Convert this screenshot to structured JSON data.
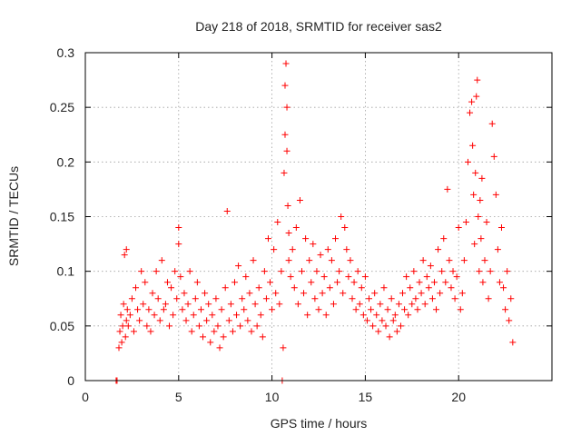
{
  "chart_data": {
    "type": "scatter",
    "title": "Day 218 of 2018, SRMTID for receiver sas2",
    "xlabel": "GPS time / hours",
    "ylabel": "SRMTID / TECUs",
    "xlim": [
      0,
      25
    ],
    "ylim": [
      0,
      0.3
    ],
    "xticks": [
      0,
      5,
      10,
      15,
      20
    ],
    "xtick_labels": [
      "0",
      "5",
      "10",
      "15",
      "20"
    ],
    "yticks": [
      0,
      0.05,
      0.1,
      0.15,
      0.2,
      0.25,
      0.3
    ],
    "ytick_labels": [
      "0",
      "0.05",
      "0.1",
      "0.15",
      "0.2",
      "0.25",
      "0.3"
    ],
    "grid": true,
    "marker": "+",
    "series": [
      {
        "name": "SRMTID",
        "color": "#ff0000",
        "x": [
          1.65,
          1.7,
          1.8,
          1.85,
          1.9,
          1.95,
          2.0,
          2.05,
          2.1,
          2.15,
          2.2,
          2.2,
          2.25,
          2.3,
          2.4,
          2.5,
          2.6,
          2.7,
          2.8,
          2.9,
          3.0,
          3.1,
          3.2,
          3.3,
          3.4,
          3.5,
          3.6,
          3.7,
          3.8,
          3.9,
          4.0,
          4.1,
          4.2,
          4.3,
          4.4,
          4.5,
          4.6,
          4.7,
          4.8,
          4.9,
          5.0,
          5.0,
          5.1,
          5.2,
          5.3,
          5.4,
          5.5,
          5.6,
          5.7,
          5.8,
          5.9,
          6.0,
          6.1,
          6.2,
          6.3,
          6.4,
          6.5,
          6.6,
          6.7,
          6.8,
          6.9,
          7.0,
          7.1,
          7.2,
          7.3,
          7.4,
          7.5,
          7.6,
          7.7,
          7.8,
          7.9,
          8.0,
          8.1,
          8.2,
          8.3,
          8.4,
          8.5,
          8.6,
          8.7,
          8.8,
          8.9,
          9.0,
          9.1,
          9.2,
          9.3,
          9.4,
          9.5,
          9.6,
          9.7,
          9.8,
          9.9,
          10.0,
          10.1,
          10.2,
          10.3,
          10.4,
          10.5,
          10.55,
          10.6,
          10.65,
          10.7,
          10.7,
          10.75,
          10.8,
          10.8,
          10.85,
          10.9,
          10.9,
          11.0,
          11.1,
          11.2,
          11.3,
          11.4,
          11.5,
          11.6,
          11.7,
          11.8,
          11.9,
          12.0,
          12.1,
          12.2,
          12.3,
          12.4,
          12.5,
          12.6,
          12.7,
          12.8,
          12.9,
          13.0,
          13.1,
          13.2,
          13.3,
          13.4,
          13.5,
          13.6,
          13.7,
          13.8,
          13.9,
          14.0,
          14.1,
          14.2,
          14.3,
          14.4,
          14.5,
          14.6,
          14.7,
          14.8,
          14.9,
          15.0,
          15.1,
          15.2,
          15.3,
          15.4,
          15.5,
          15.6,
          15.7,
          15.8,
          15.9,
          16.0,
          16.1,
          16.2,
          16.3,
          16.4,
          16.5,
          16.6,
          16.7,
          16.8,
          16.9,
          17.0,
          17.1,
          17.2,
          17.3,
          17.4,
          17.5,
          17.6,
          17.7,
          17.8,
          17.9,
          18.0,
          18.1,
          18.2,
          18.3,
          18.4,
          18.5,
          18.6,
          18.7,
          18.8,
          18.9,
          19.0,
          19.1,
          19.2,
          19.3,
          19.4,
          19.5,
          19.6,
          19.7,
          19.8,
          19.9,
          20.0,
          20.1,
          20.2,
          20.3,
          20.4,
          20.5,
          20.6,
          20.7,
          20.75,
          20.8,
          20.85,
          20.9,
          20.95,
          21.0,
          21.05,
          21.1,
          21.15,
          21.2,
          21.25,
          21.3,
          21.4,
          21.5,
          21.6,
          21.7,
          21.8,
          21.9,
          22.0,
          22.1,
          22.2,
          22.3,
          22.4,
          22.5,
          22.6,
          22.7,
          22.8,
          22.9
        ],
        "y": [
          0.0,
          0.0,
          0.03,
          0.045,
          0.06,
          0.035,
          0.05,
          0.07,
          0.115,
          0.04,
          0.055,
          0.12,
          0.065,
          0.05,
          0.06,
          0.075,
          0.045,
          0.085,
          0.065,
          0.055,
          0.1,
          0.07,
          0.09,
          0.05,
          0.065,
          0.045,
          0.08,
          0.06,
          0.1,
          0.075,
          0.055,
          0.11,
          0.065,
          0.07,
          0.09,
          0.05,
          0.085,
          0.06,
          0.1,
          0.075,
          0.125,
          0.14,
          0.095,
          0.065,
          0.08,
          0.055,
          0.07,
          0.1,
          0.045,
          0.06,
          0.075,
          0.09,
          0.05,
          0.065,
          0.04,
          0.08,
          0.055,
          0.07,
          0.035,
          0.06,
          0.045,
          0.075,
          0.05,
          0.03,
          0.065,
          0.04,
          0.085,
          0.155,
          0.055,
          0.07,
          0.045,
          0.09,
          0.06,
          0.105,
          0.05,
          0.075,
          0.065,
          0.095,
          0.055,
          0.08,
          0.045,
          0.11,
          0.07,
          0.05,
          0.085,
          0.06,
          0.04,
          0.1,
          0.075,
          0.13,
          0.09,
          0.065,
          0.12,
          0.08,
          0.145,
          0.07,
          0.1,
          0.0,
          0.03,
          0.19,
          0.225,
          0.27,
          0.29,
          0.25,
          0.21,
          0.16,
          0.135,
          0.11,
          0.095,
          0.12,
          0.085,
          0.14,
          0.07,
          0.165,
          0.1,
          0.08,
          0.13,
          0.06,
          0.11,
          0.09,
          0.125,
          0.075,
          0.1,
          0.065,
          0.115,
          0.08,
          0.095,
          0.06,
          0.12,
          0.085,
          0.11,
          0.07,
          0.13,
          0.09,
          0.1,
          0.15,
          0.08,
          0.14,
          0.12,
          0.095,
          0.11,
          0.075,
          0.09,
          0.065,
          0.1,
          0.07,
          0.085,
          0.06,
          0.095,
          0.055,
          0.075,
          0.065,
          0.05,
          0.08,
          0.06,
          0.045,
          0.07,
          0.055,
          0.085,
          0.05,
          0.065,
          0.04,
          0.075,
          0.055,
          0.06,
          0.045,
          0.07,
          0.05,
          0.08,
          0.065,
          0.095,
          0.06,
          0.085,
          0.07,
          0.1,
          0.075,
          0.065,
          0.09,
          0.08,
          0.11,
          0.07,
          0.095,
          0.085,
          0.105,
          0.075,
          0.09,
          0.065,
          0.12,
          0.08,
          0.1,
          0.13,
          0.09,
          0.175,
          0.11,
          0.085,
          0.1,
          0.075,
          0.095,
          0.14,
          0.065,
          0.08,
          0.11,
          0.145,
          0.2,
          0.245,
          0.255,
          0.215,
          0.17,
          0.125,
          0.19,
          0.26,
          0.275,
          0.15,
          0.1,
          0.165,
          0.13,
          0.185,
          0.09,
          0.11,
          0.145,
          0.075,
          0.1,
          0.235,
          0.205,
          0.17,
          0.12,
          0.09,
          0.14,
          0.085,
          0.065,
          0.1,
          0.055,
          0.075,
          0.035
        ]
      }
    ]
  }
}
